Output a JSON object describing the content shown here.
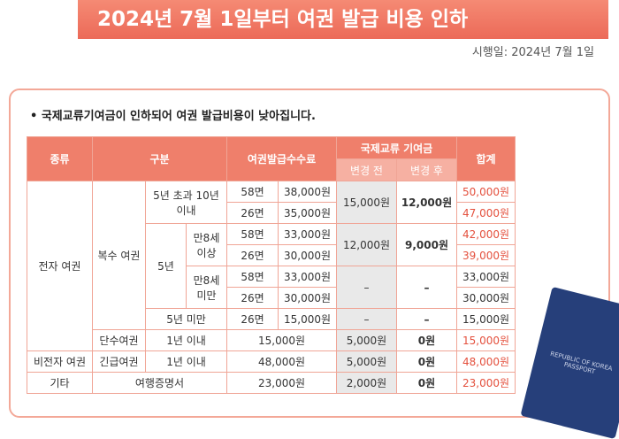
{
  "header": {
    "title": "2024년 7월 1일부터 여권 발급 비용 인하",
    "effective": "시행일: 2024년 7월 1일"
  },
  "bullet": "국제교류기여금이 인하되어 여권 발급비용이 낮아집니다.",
  "table": {
    "head": [
      "종류",
      "구분",
      "여권발급수수료",
      "국제교류 기여금",
      "변경 전",
      "변경 후",
      "합계"
    ],
    "rows": [
      [
        "전자 여권",
        "복수 여권",
        "5년 초과 10년 이내",
        "58면",
        "38,000원",
        "15,000원",
        "12,000원",
        "50,000원"
      ],
      [
        "26면",
        "35,000원",
        "47,000원"
      ],
      [
        "5년",
        "만8세 이상",
        "58면",
        "33,000원",
        "12,000원",
        "9,000원",
        "42,000원"
      ],
      [
        "26면",
        "30,000원",
        "39,000원"
      ],
      [
        "만8세 미만",
        "58면",
        "33,000원",
        "–",
        "–",
        "33,000원"
      ],
      [
        "26면",
        "30,000원",
        "30,000원"
      ],
      [
        "5년 미만",
        "26면",
        "15,000원",
        "–",
        "–",
        "15,000원"
      ],
      [
        "단수여권",
        "1년 이내",
        "15,000원",
        "5,000원",
        "0원",
        "15,000원"
      ],
      [
        "비전자 여권",
        "긴급여권",
        "1년 이내",
        "48,000원",
        "5,000원",
        "0원",
        "48,000원"
      ],
      [
        "기타",
        "여행증명서",
        "23,000원",
        "2,000원",
        "0원",
        "23,000원"
      ]
    ]
  },
  "passport": "REPUBLIC OF KOREA PASSPORT"
}
